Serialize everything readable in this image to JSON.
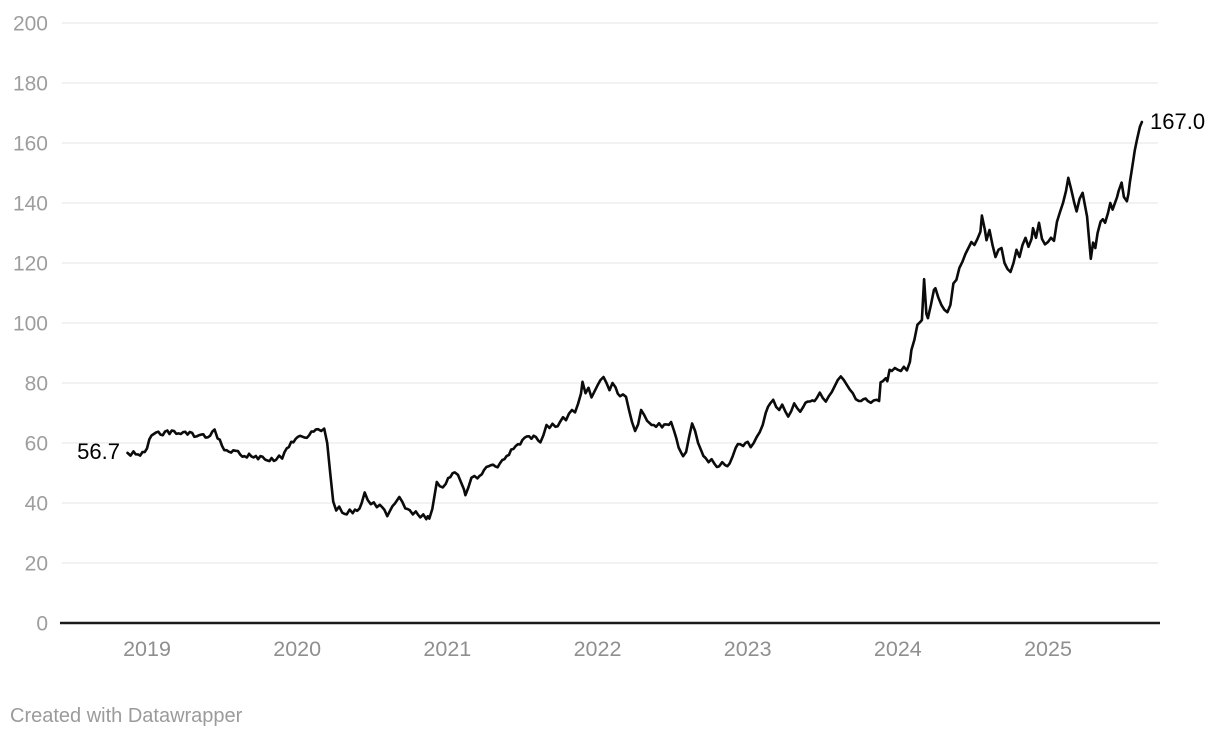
{
  "footer": {
    "text": "Created with Datawrapper"
  },
  "colors": {
    "line": "#0b0b0b",
    "grid": "#e4e4e4",
    "baseline": "#1a1a1a",
    "y_tick_label": "#9e9e9e",
    "x_tick_label": "#8f8f8f",
    "value_label": "#000000",
    "footer_text": "#9b9b9b",
    "background": "#ffffff"
  },
  "chart_data": {
    "type": "line",
    "title": "",
    "xlabel": "",
    "ylabel": "",
    "legend": "none",
    "grid": "horizontal",
    "ylim": [
      0,
      200
    ],
    "y_ticks": [
      0,
      20,
      40,
      60,
      80,
      100,
      120,
      140,
      160,
      180,
      200
    ],
    "x_tick_labels": [
      "2019",
      "2020",
      "2021",
      "2022",
      "2023",
      "2024",
      "2025"
    ],
    "xlim_years": [
      2018.87,
      2025.63
    ],
    "start_label": "56.7",
    "end_label": "167.0",
    "start_value": 56.7,
    "end_value": 167.0,
    "points": [
      [
        2018.87,
        56.7
      ],
      [
        2018.89,
        55.8
      ],
      [
        2018.91,
        57.2
      ],
      [
        2018.94,
        56.2
      ],
      [
        2018.97,
        57.0
      ],
      [
        2019.0,
        58.2
      ],
      [
        2019.03,
        62.5
      ],
      [
        2019.06,
        63.5
      ],
      [
        2019.09,
        62.8
      ],
      [
        2019.12,
        63.8
      ],
      [
        2019.15,
        63.0
      ],
      [
        2019.18,
        64.0
      ],
      [
        2019.21,
        63.2
      ],
      [
        2019.24,
        63.6
      ],
      [
        2019.27,
        62.8
      ],
      [
        2019.3,
        63.4
      ],
      [
        2019.33,
        62.2
      ],
      [
        2019.36,
        62.8
      ],
      [
        2019.39,
        61.8
      ],
      [
        2019.42,
        62.4
      ],
      [
        2019.45,
        64.5
      ],
      [
        2019.47,
        61.5
      ],
      [
        2019.5,
        59.0
      ],
      [
        2019.53,
        57.6
      ],
      [
        2019.56,
        56.8
      ],
      [
        2019.59,
        57.4
      ],
      [
        2019.62,
        56.2
      ],
      [
        2019.65,
        55.6
      ],
      [
        2019.68,
        56.4
      ],
      [
        2019.71,
        55.2
      ],
      [
        2019.74,
        54.6
      ],
      [
        2019.77,
        55.4
      ],
      [
        2019.8,
        54.2
      ],
      [
        2019.83,
        55.0
      ],
      [
        2019.86,
        54.4
      ],
      [
        2019.88,
        55.8
      ],
      [
        2019.9,
        54.8
      ],
      [
        2019.93,
        58.2
      ],
      [
        2019.96,
        60.4
      ],
      [
        2019.99,
        61.4
      ],
      [
        2020.02,
        62.4
      ],
      [
        2020.05,
        61.8
      ],
      [
        2020.08,
        62.6
      ],
      [
        2020.11,
        63.8
      ],
      [
        2020.14,
        64.6
      ],
      [
        2020.16,
        64.0
      ],
      [
        2020.18,
        64.8
      ],
      [
        2020.2,
        60.0
      ],
      [
        2020.22,
        50.0
      ],
      [
        2020.24,
        40.5
      ],
      [
        2020.26,
        37.5
      ],
      [
        2020.28,
        38.8
      ],
      [
        2020.3,
        36.8
      ],
      [
        2020.33,
        36.2
      ],
      [
        2020.35,
        37.8
      ],
      [
        2020.37,
        36.6
      ],
      [
        2020.4,
        37.4
      ],
      [
        2020.43,
        40.0
      ],
      [
        2020.45,
        43.5
      ],
      [
        2020.47,
        41.0
      ],
      [
        2020.49,
        39.6
      ],
      [
        2020.51,
        40.2
      ],
      [
        2020.53,
        38.6
      ],
      [
        2020.55,
        39.4
      ],
      [
        2020.58,
        37.8
      ],
      [
        2020.6,
        35.6
      ],
      [
        2020.62,
        37.6
      ],
      [
        2020.65,
        39.8
      ],
      [
        2020.68,
        42.0
      ],
      [
        2020.7,
        40.4
      ],
      [
        2020.72,
        38.2
      ],
      [
        2020.75,
        37.6
      ],
      [
        2020.77,
        36.2
      ],
      [
        2020.79,
        37.2
      ],
      [
        2020.82,
        35.2
      ],
      [
        2020.84,
        36.2
      ],
      [
        2020.86,
        34.6
      ],
      [
        2020.87,
        35.6
      ],
      [
        2020.88,
        34.8
      ],
      [
        2020.9,
        38.0
      ],
      [
        2020.92,
        44.0
      ],
      [
        2020.93,
        47.0
      ],
      [
        2020.95,
        45.6
      ],
      [
        2020.97,
        45.2
      ],
      [
        2020.99,
        46.4
      ],
      [
        2021.02,
        48.6
      ],
      [
        2021.05,
        50.2
      ],
      [
        2021.07,
        49.4
      ],
      [
        2021.09,
        47.0
      ],
      [
        2021.11,
        44.6
      ],
      [
        2021.12,
        42.6
      ],
      [
        2021.14,
        45.2
      ],
      [
        2021.16,
        48.4
      ],
      [
        2021.18,
        49.0
      ],
      [
        2021.2,
        48.2
      ],
      [
        2021.23,
        49.6
      ],
      [
        2021.26,
        52.0
      ],
      [
        2021.29,
        52.6
      ],
      [
        2021.32,
        52.2
      ],
      [
        2021.35,
        53.2
      ],
      [
        2021.38,
        54.6
      ],
      [
        2021.41,
        56.0
      ],
      [
        2021.44,
        58.0
      ],
      [
        2021.47,
        59.6
      ],
      [
        2021.5,
        61.0
      ],
      [
        2021.53,
        62.2
      ],
      [
        2021.56,
        61.4
      ],
      [
        2021.59,
        62.0
      ],
      [
        2021.62,
        60.2
      ],
      [
        2021.64,
        62.6
      ],
      [
        2021.66,
        66.0
      ],
      [
        2021.68,
        65.0
      ],
      [
        2021.7,
        66.4
      ],
      [
        2021.72,
        65.4
      ],
      [
        2021.75,
        67.0
      ],
      [
        2021.77,
        68.6
      ],
      [
        2021.79,
        67.6
      ],
      [
        2021.81,
        69.8
      ],
      [
        2021.83,
        71.0
      ],
      [
        2021.85,
        70.2
      ],
      [
        2021.87,
        73.0
      ],
      [
        2021.89,
        76.5
      ],
      [
        2021.9,
        80.4
      ],
      [
        2021.92,
        76.6
      ],
      [
        2021.94,
        78.4
      ],
      [
        2021.96,
        75.2
      ],
      [
        2021.98,
        77.2
      ],
      [
        2022.0,
        79.2
      ],
      [
        2022.02,
        81.0
      ],
      [
        2022.04,
        82.0
      ],
      [
        2022.06,
        80.0
      ],
      [
        2022.08,
        77.6
      ],
      [
        2022.1,
        80.0
      ],
      [
        2022.12,
        78.6
      ],
      [
        2022.15,
        75.6
      ],
      [
        2022.17,
        76.2
      ],
      [
        2022.19,
        75.4
      ],
      [
        2022.21,
        71.0
      ],
      [
        2022.23,
        67.0
      ],
      [
        2022.25,
        64.0
      ],
      [
        2022.27,
        66.2
      ],
      [
        2022.29,
        71.0
      ],
      [
        2022.31,
        69.4
      ],
      [
        2022.33,
        67.4
      ],
      [
        2022.36,
        66.0
      ],
      [
        2022.39,
        65.4
      ],
      [
        2022.41,
        66.6
      ],
      [
        2022.43,
        65.2
      ],
      [
        2022.46,
        66.2
      ],
      [
        2022.49,
        67.0
      ],
      [
        2022.51,
        64.0
      ],
      [
        2022.54,
        58.5
      ],
      [
        2022.57,
        55.6
      ],
      [
        2022.59,
        57.0
      ],
      [
        2022.61,
        62.0
      ],
      [
        2022.63,
        66.5
      ],
      [
        2022.65,
        64.0
      ],
      [
        2022.67,
        60.0
      ],
      [
        2022.69,
        57.6
      ],
      [
        2022.72,
        55.0
      ],
      [
        2022.74,
        53.6
      ],
      [
        2022.76,
        54.6
      ],
      [
        2022.78,
        53.0
      ],
      [
        2022.81,
        52.2
      ],
      [
        2022.83,
        53.6
      ],
      [
        2022.85,
        52.6
      ],
      [
        2022.88,
        53.2
      ],
      [
        2022.9,
        55.6
      ],
      [
        2022.92,
        58.4
      ],
      [
        2022.95,
        59.6
      ],
      [
        2022.97,
        59.0
      ],
      [
        2023.0,
        60.4
      ],
      [
        2023.02,
        58.6
      ],
      [
        2023.04,
        60.0
      ],
      [
        2023.06,
        62.0
      ],
      [
        2023.08,
        63.6
      ],
      [
        2023.1,
        66.0
      ],
      [
        2023.12,
        70.0
      ],
      [
        2023.15,
        73.2
      ],
      [
        2023.17,
        74.4
      ],
      [
        2023.19,
        72.0
      ],
      [
        2023.21,
        71.0
      ],
      [
        2023.23,
        72.8
      ],
      [
        2023.25,
        70.6
      ],
      [
        2023.27,
        68.8
      ],
      [
        2023.29,
        70.6
      ],
      [
        2023.31,
        73.2
      ],
      [
        2023.33,
        71.6
      ],
      [
        2023.35,
        70.4
      ],
      [
        2023.37,
        72.0
      ],
      [
        2023.4,
        73.8
      ],
      [
        2023.43,
        74.2
      ],
      [
        2023.46,
        75.0
      ],
      [
        2023.48,
        76.8
      ],
      [
        2023.5,
        75.0
      ],
      [
        2023.52,
        73.8
      ],
      [
        2023.54,
        75.6
      ],
      [
        2023.56,
        77.0
      ],
      [
        2023.58,
        79.0
      ],
      [
        2023.6,
        81.0
      ],
      [
        2023.62,
        82.2
      ],
      [
        2023.64,
        81.0
      ],
      [
        2023.66,
        79.4
      ],
      [
        2023.68,
        77.8
      ],
      [
        2023.7,
        76.6
      ],
      [
        2023.72,
        74.6
      ],
      [
        2023.74,
        74.0
      ],
      [
        2023.77,
        74.6
      ],
      [
        2023.8,
        74.0
      ],
      [
        2023.82,
        73.4
      ],
      [
        2023.84,
        74.2
      ],
      [
        2023.86,
        74.4
      ],
      [
        2023.875,
        74.0
      ],
      [
        2023.885,
        80.2
      ],
      [
        2023.9,
        80.6
      ],
      [
        2023.92,
        81.6
      ],
      [
        2023.93,
        80.6
      ],
      [
        2023.945,
        84.4
      ],
      [
        2023.96,
        84.0
      ],
      [
        2023.98,
        85.0
      ],
      [
        2024.0,
        84.4
      ],
      [
        2024.02,
        84.0
      ],
      [
        2024.04,
        85.4
      ],
      [
        2024.06,
        84.2
      ],
      [
        2024.08,
        87.0
      ],
      [
        2024.09,
        91.0
      ],
      [
        2024.11,
        94.4
      ],
      [
        2024.13,
        99.4
      ],
      [
        2024.15,
        100.4
      ],
      [
        2024.16,
        101.0
      ],
      [
        2024.175,
        114.6
      ],
      [
        2024.19,
        103.0
      ],
      [
        2024.2,
        101.6
      ],
      [
        2024.22,
        106.0
      ],
      [
        2024.24,
        111.0
      ],
      [
        2024.25,
        111.6
      ],
      [
        2024.27,
        108.4
      ],
      [
        2024.29,
        106.0
      ],
      [
        2024.31,
        104.4
      ],
      [
        2024.33,
        103.6
      ],
      [
        2024.35,
        106.0
      ],
      [
        2024.37,
        113.2
      ],
      [
        2024.39,
        114.4
      ],
      [
        2024.41,
        118.4
      ],
      [
        2024.43,
        120.4
      ],
      [
        2024.45,
        123.0
      ],
      [
        2024.47,
        125.0
      ],
      [
        2024.49,
        127.0
      ],
      [
        2024.51,
        126.0
      ],
      [
        2024.53,
        128.0
      ],
      [
        2024.55,
        130.4
      ],
      [
        2024.56,
        135.8
      ],
      [
        2024.58,
        131.0
      ],
      [
        2024.59,
        127.6
      ],
      [
        2024.61,
        131.0
      ],
      [
        2024.63,
        126.0
      ],
      [
        2024.65,
        122.0
      ],
      [
        2024.67,
        124.4
      ],
      [
        2024.69,
        125.0
      ],
      [
        2024.71,
        120.0
      ],
      [
        2024.73,
        118.0
      ],
      [
        2024.75,
        117.0
      ],
      [
        2024.77,
        120.0
      ],
      [
        2024.79,
        124.4
      ],
      [
        2024.81,
        122.0
      ],
      [
        2024.83,
        126.0
      ],
      [
        2024.85,
        128.4
      ],
      [
        2024.87,
        125.4
      ],
      [
        2024.89,
        128.0
      ],
      [
        2024.9,
        131.6
      ],
      [
        2024.92,
        128.4
      ],
      [
        2024.94,
        133.4
      ],
      [
        2024.96,
        128.0
      ],
      [
        2024.98,
        126.2
      ],
      [
        2025.0,
        127.0
      ],
      [
        2025.02,
        128.4
      ],
      [
        2025.04,
        127.4
      ],
      [
        2025.06,
        133.8
      ],
      [
        2025.08,
        137.0
      ],
      [
        2025.1,
        140.0
      ],
      [
        2025.12,
        144.0
      ],
      [
        2025.135,
        148.4
      ],
      [
        2025.155,
        144.4
      ],
      [
        2025.175,
        140.0
      ],
      [
        2025.19,
        137.2
      ],
      [
        2025.21,
        141.4
      ],
      [
        2025.23,
        143.4
      ],
      [
        2025.26,
        135.4
      ],
      [
        2025.275,
        127.0
      ],
      [
        2025.285,
        121.4
      ],
      [
        2025.3,
        126.8
      ],
      [
        2025.315,
        125.0
      ],
      [
        2025.33,
        130.0
      ],
      [
        2025.35,
        133.8
      ],
      [
        2025.365,
        134.6
      ],
      [
        2025.38,
        133.4
      ],
      [
        2025.4,
        136.8
      ],
      [
        2025.415,
        140.0
      ],
      [
        2025.43,
        137.8
      ],
      [
        2025.45,
        140.6
      ],
      [
        2025.46,
        142.0
      ],
      [
        2025.47,
        144.0
      ],
      [
        2025.49,
        146.8
      ],
      [
        2025.505,
        142.0
      ],
      [
        2025.525,
        140.6
      ],
      [
        2025.535,
        143.0
      ],
      [
        2025.545,
        147.0
      ],
      [
        2025.565,
        153.4
      ],
      [
        2025.578,
        157.6
      ],
      [
        2025.592,
        161.0
      ],
      [
        2025.612,
        165.4
      ],
      [
        2025.625,
        167.0
      ]
    ]
  }
}
